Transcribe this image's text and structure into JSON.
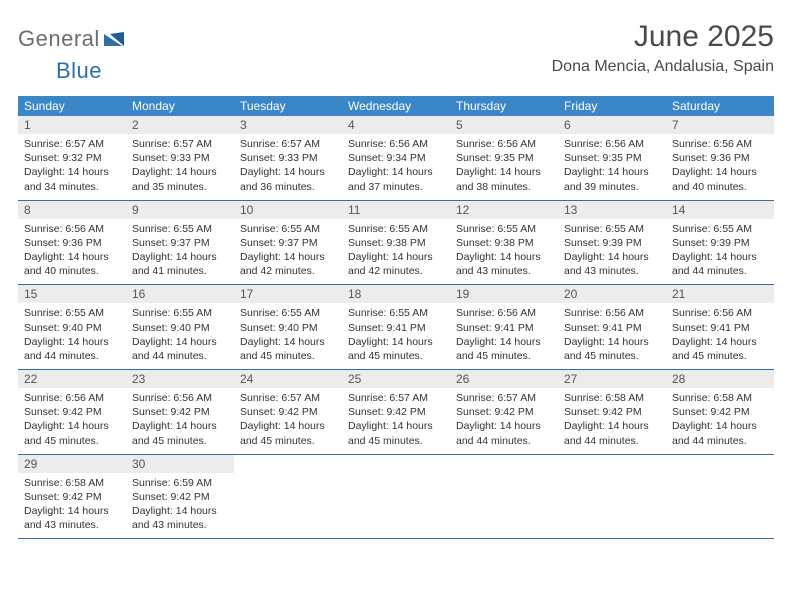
{
  "colors": {
    "header_bg": "#3b86c6",
    "header_text": "#ffffff",
    "date_bg": "#ececec",
    "date_text": "#555555",
    "body_text": "#333333",
    "week_border": "#2f6fa8",
    "logo_gray": "#6d6d6d",
    "logo_blue": "#2f6fa8",
    "title_color": "#4a4a4a"
  },
  "logo": {
    "text1": "General",
    "text2": "Blue"
  },
  "title": "June 2025",
  "location": "Dona Mencia, Andalusia, Spain",
  "day_names": [
    "Sunday",
    "Monday",
    "Tuesday",
    "Wednesday",
    "Thursday",
    "Friday",
    "Saturday"
  ],
  "days": [
    {
      "n": "1",
      "sr": "6:57 AM",
      "ss": "9:32 PM",
      "dl": "14 hours and 34 minutes."
    },
    {
      "n": "2",
      "sr": "6:57 AM",
      "ss": "9:33 PM",
      "dl": "14 hours and 35 minutes."
    },
    {
      "n": "3",
      "sr": "6:57 AM",
      "ss": "9:33 PM",
      "dl": "14 hours and 36 minutes."
    },
    {
      "n": "4",
      "sr": "6:56 AM",
      "ss": "9:34 PM",
      "dl": "14 hours and 37 minutes."
    },
    {
      "n": "5",
      "sr": "6:56 AM",
      "ss": "9:35 PM",
      "dl": "14 hours and 38 minutes."
    },
    {
      "n": "6",
      "sr": "6:56 AM",
      "ss": "9:35 PM",
      "dl": "14 hours and 39 minutes."
    },
    {
      "n": "7",
      "sr": "6:56 AM",
      "ss": "9:36 PM",
      "dl": "14 hours and 40 minutes."
    },
    {
      "n": "8",
      "sr": "6:56 AM",
      "ss": "9:36 PM",
      "dl": "14 hours and 40 minutes."
    },
    {
      "n": "9",
      "sr": "6:55 AM",
      "ss": "9:37 PM",
      "dl": "14 hours and 41 minutes."
    },
    {
      "n": "10",
      "sr": "6:55 AM",
      "ss": "9:37 PM",
      "dl": "14 hours and 42 minutes."
    },
    {
      "n": "11",
      "sr": "6:55 AM",
      "ss": "9:38 PM",
      "dl": "14 hours and 42 minutes."
    },
    {
      "n": "12",
      "sr": "6:55 AM",
      "ss": "9:38 PM",
      "dl": "14 hours and 43 minutes."
    },
    {
      "n": "13",
      "sr": "6:55 AM",
      "ss": "9:39 PM",
      "dl": "14 hours and 43 minutes."
    },
    {
      "n": "14",
      "sr": "6:55 AM",
      "ss": "9:39 PM",
      "dl": "14 hours and 44 minutes."
    },
    {
      "n": "15",
      "sr": "6:55 AM",
      "ss": "9:40 PM",
      "dl": "14 hours and 44 minutes."
    },
    {
      "n": "16",
      "sr": "6:55 AM",
      "ss": "9:40 PM",
      "dl": "14 hours and 44 minutes."
    },
    {
      "n": "17",
      "sr": "6:55 AM",
      "ss": "9:40 PM",
      "dl": "14 hours and 45 minutes."
    },
    {
      "n": "18",
      "sr": "6:55 AM",
      "ss": "9:41 PM",
      "dl": "14 hours and 45 minutes."
    },
    {
      "n": "19",
      "sr": "6:56 AM",
      "ss": "9:41 PM",
      "dl": "14 hours and 45 minutes."
    },
    {
      "n": "20",
      "sr": "6:56 AM",
      "ss": "9:41 PM",
      "dl": "14 hours and 45 minutes."
    },
    {
      "n": "21",
      "sr": "6:56 AM",
      "ss": "9:41 PM",
      "dl": "14 hours and 45 minutes."
    },
    {
      "n": "22",
      "sr": "6:56 AM",
      "ss": "9:42 PM",
      "dl": "14 hours and 45 minutes."
    },
    {
      "n": "23",
      "sr": "6:56 AM",
      "ss": "9:42 PM",
      "dl": "14 hours and 45 minutes."
    },
    {
      "n": "24",
      "sr": "6:57 AM",
      "ss": "9:42 PM",
      "dl": "14 hours and 45 minutes."
    },
    {
      "n": "25",
      "sr": "6:57 AM",
      "ss": "9:42 PM",
      "dl": "14 hours and 45 minutes."
    },
    {
      "n": "26",
      "sr": "6:57 AM",
      "ss": "9:42 PM",
      "dl": "14 hours and 44 minutes."
    },
    {
      "n": "27",
      "sr": "6:58 AM",
      "ss": "9:42 PM",
      "dl": "14 hours and 44 minutes."
    },
    {
      "n": "28",
      "sr": "6:58 AM",
      "ss": "9:42 PM",
      "dl": "14 hours and 44 minutes."
    },
    {
      "n": "29",
      "sr": "6:58 AM",
      "ss": "9:42 PM",
      "dl": "14 hours and 43 minutes."
    },
    {
      "n": "30",
      "sr": "6:59 AM",
      "ss": "9:42 PM",
      "dl": "14 hours and 43 minutes."
    }
  ],
  "labels": {
    "sunrise": "Sunrise: ",
    "sunset": "Sunset: ",
    "daylight": "Daylight: "
  }
}
